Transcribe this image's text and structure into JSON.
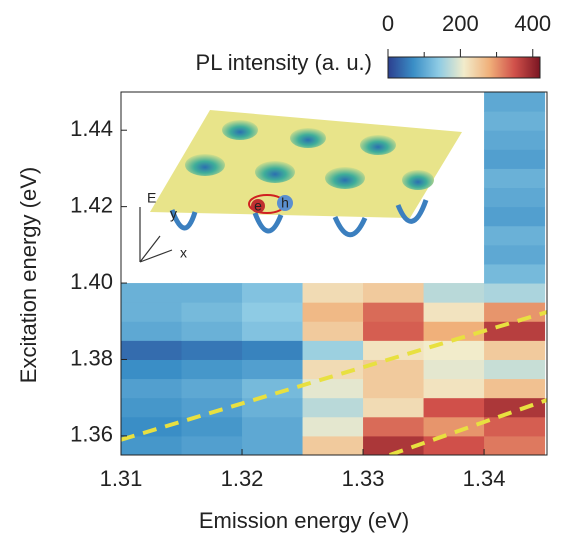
{
  "chart_data": {
    "type": "heatmap",
    "xlabel": "Emission energy (eV)",
    "ylabel": "Excitation energy (eV)",
    "colorbar_label": "PL intensity (a. u.)",
    "xlim": [
      1.31,
      1.3452
    ],
    "ylim": [
      1.355,
      1.45
    ],
    "xticks": [
      1.31,
      1.32,
      1.33,
      1.34
    ],
    "yticks": [
      1.36,
      1.38,
      {
        "value": 1.4,
        "label": "1.40"
      },
      1.42,
      1.44
    ],
    "x_edges": [
      1.31,
      1.315,
      1.32,
      1.325,
      1.33,
      1.335,
      1.34,
      1.345
    ],
    "y_edges": [
      1.355,
      1.36,
      1.365,
      1.37,
      1.375,
      1.38,
      1.385,
      1.39,
      1.395,
      1.4,
      1.405,
      1.41,
      1.415,
      1.42,
      1.425,
      1.43,
      1.435,
      1.44,
      1.445,
      1.45
    ],
    "z": [
      [
        80,
        90,
        100,
        250,
        380,
        350,
        320
      ],
      [
        70,
        80,
        100,
        200,
        330,
        300,
        340
      ],
      [
        80,
        90,
        110,
        170,
        230,
        350,
        380
      ],
      [
        90,
        100,
        120,
        200,
        250,
        220,
        260
      ],
      [
        70,
        80,
        90,
        230,
        250,
        200,
        180
      ],
      [
        40,
        50,
        60,
        150,
        220,
        210,
        250
      ],
      [
        100,
        110,
        130,
        250,
        340,
        280,
        370
      ],
      [
        110,
        120,
        140,
        270,
        330,
        220,
        300
      ],
      [
        110,
        110,
        130,
        230,
        250,
        170,
        160
      ],
      [
        null,
        null,
        null,
        null,
        null,
        null,
        120
      ],
      [
        null,
        null,
        null,
        null,
        null,
        null,
        100
      ],
      [
        null,
        null,
        null,
        null,
        null,
        null,
        110
      ],
      [
        null,
        null,
        null,
        null,
        null,
        null,
        90
      ],
      [
        null,
        null,
        null,
        null,
        null,
        null,
        100
      ],
      [
        null,
        null,
        null,
        null,
        null,
        null,
        110
      ],
      [
        null,
        null,
        null,
        null,
        null,
        null,
        90
      ],
      [
        null,
        null,
        null,
        null,
        null,
        null,
        100
      ],
      [
        null,
        null,
        null,
        null,
        null,
        null,
        110
      ],
      [
        null,
        null,
        null,
        null,
        null,
        null,
        100
      ]
    ],
    "clim": [
      0,
      420
    ],
    "colorbar_ticks": [
      0,
      200,
      400
    ],
    "colorbar_minor_ticks": [
      100,
      300
    ],
    "colormap": [
      "#2c3f8f",
      "#3a8ec6",
      "#8ecbe4",
      "#f2eccb",
      "#f0b07a",
      "#d0504a",
      "#7a1522"
    ],
    "lines": [
      {
        "x": [
          1.31,
          1.3452
        ],
        "y": [
          1.359,
          1.3924
        ],
        "color": "#e8e040"
      },
      {
        "x": [
          1.3322,
          1.3452
        ],
        "y": [
          1.355,
          1.3694
        ],
        "color": "#e8e040"
      }
    ],
    "inset_labels": [
      "E",
      "y",
      "x",
      "e",
      "h"
    ]
  }
}
